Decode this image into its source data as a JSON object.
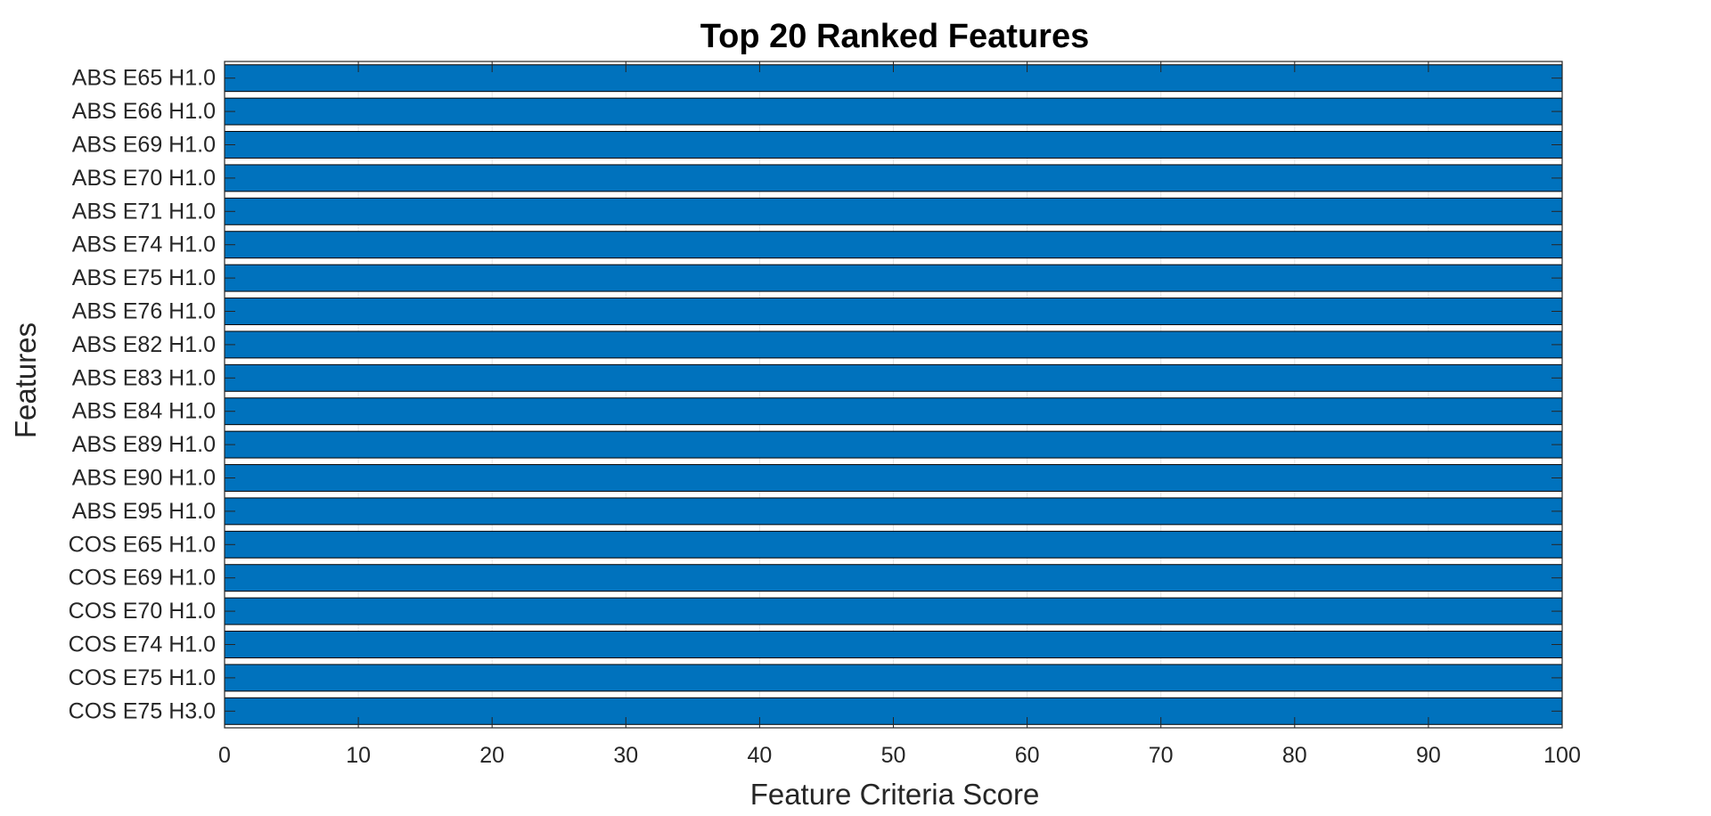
{
  "chart_data": {
    "type": "bar",
    "orientation": "horizontal",
    "title": "Top 20 Ranked Features",
    "xlabel": "Feature Criteria Score",
    "ylabel": "Features",
    "xlim": [
      0,
      100
    ],
    "xticks": [
      0,
      10,
      20,
      30,
      40,
      50,
      60,
      70,
      80,
      90,
      100
    ],
    "categories": [
      "ABS E65 H1.0",
      "ABS E66 H1.0",
      "ABS E69 H1.0",
      "ABS E70 H1.0",
      "ABS E71 H1.0",
      "ABS E74 H1.0",
      "ABS E75 H1.0",
      "ABS E76 H1.0",
      "ABS E82 H1.0",
      "ABS E83 H1.0",
      "ABS E84 H1.0",
      "ABS E89 H1.0",
      "ABS E90 H1.0",
      "ABS E95 H1.0",
      "COS E65 H1.0",
      "COS E69 H1.0",
      "COS E70 H1.0",
      "COS E74 H1.0",
      "COS E75 H1.0",
      "COS E75 H3.0"
    ],
    "values": [
      100,
      100,
      100,
      100,
      100,
      100,
      100,
      100,
      100,
      100,
      100,
      100,
      100,
      100,
      100,
      100,
      100,
      100,
      100,
      100
    ],
    "bar_color": "#0072BD",
    "grid": true,
    "box": true
  }
}
